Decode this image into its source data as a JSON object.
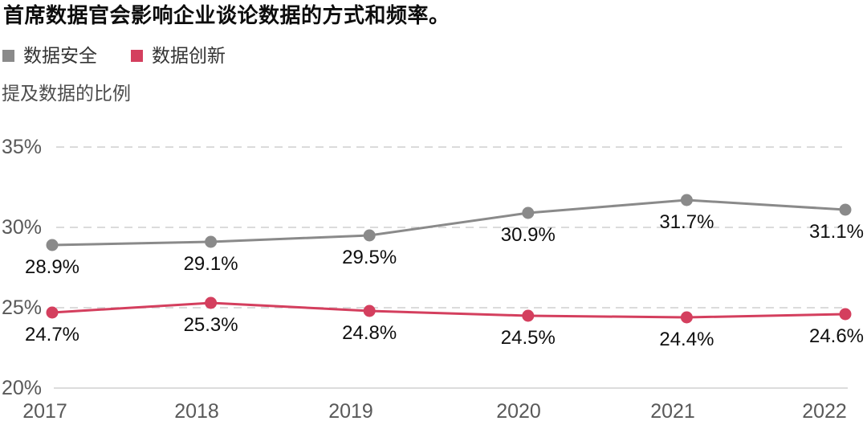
{
  "title": "首席数据官会影响企业谈论数据的方式和频率。",
  "chart_data": {
    "type": "line",
    "title": "首席数据官会影响企业谈论数据的方式和频率。",
    "ylabel": "提及数据的比例",
    "xlabel": "",
    "categories": [
      "2017",
      "2018",
      "2019",
      "2020",
      "2021",
      "2022"
    ],
    "series": [
      {
        "key": "security",
        "name": "数据安全",
        "color": "#8A8A8A",
        "values": [
          28.9,
          29.1,
          29.5,
          30.9,
          31.7,
          31.1
        ],
        "point_labels": [
          "28.9%",
          "29.1%",
          "29.5%",
          "30.9%",
          "31.7%",
          "31.1%"
        ]
      },
      {
        "key": "innovation",
        "name": "数据创新",
        "color": "#D43F5E",
        "values": [
          24.7,
          25.3,
          24.8,
          24.5,
          24.4,
          24.6
        ],
        "point_labels": [
          "24.7%",
          "25.3%",
          "24.8%",
          "24.5%",
          "24.4%",
          "24.6%"
        ]
      }
    ],
    "ylim": [
      20,
      35
    ],
    "yticks": [
      {
        "value": 35,
        "label": "35%",
        "style": "dashed"
      },
      {
        "value": 30,
        "label": "30%",
        "style": "dashed"
      },
      {
        "value": 25,
        "label": "25%",
        "style": "dashed"
      },
      {
        "value": 20,
        "label": "20%",
        "style": "solid"
      }
    ],
    "grid": "horizontal",
    "legend_position": "top-left",
    "colors": {
      "grid_dashed": "#DBDBDB",
      "axis_line": "#DCDCDC",
      "tick_text": "#595959",
      "data_label_text": "#0f0f0f"
    }
  }
}
